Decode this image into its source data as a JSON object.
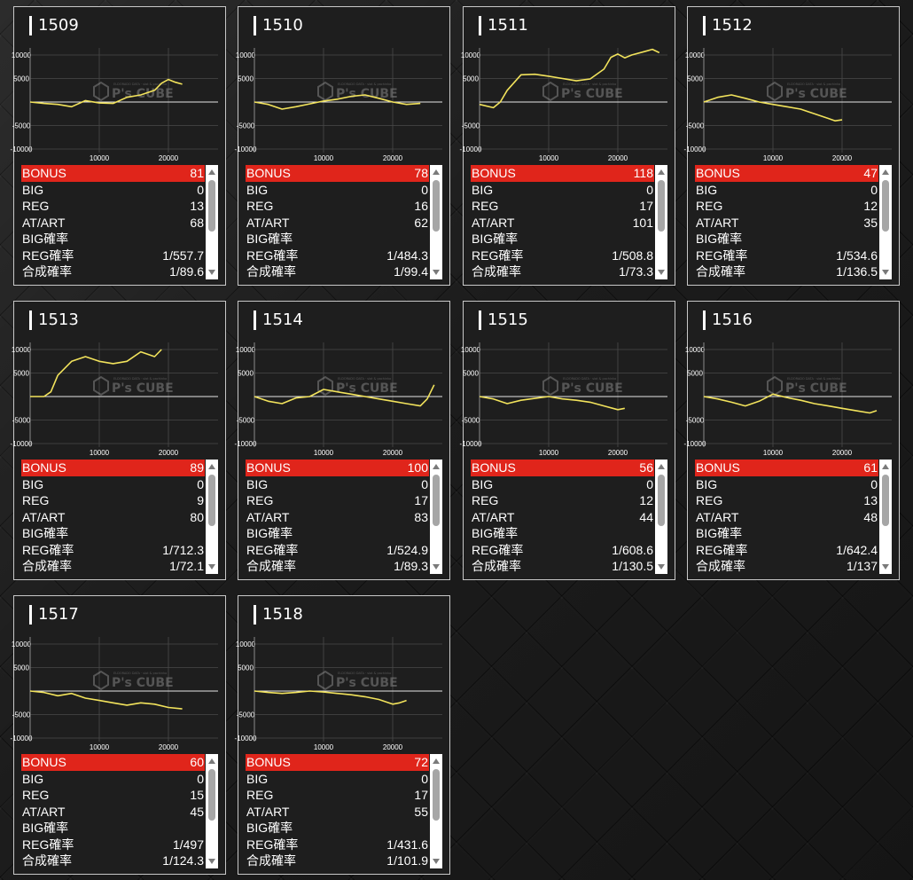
{
  "stat_labels": [
    "BONUS",
    "BIG",
    "REG",
    "AT/ART",
    "BIG確率",
    "REG確率",
    "合成確率"
  ],
  "watermark": {
    "brand": "P's CUBE",
    "subtitle": "ELDORADO DATA · slot & pachinko"
  },
  "chart_axes": {
    "y_ticks": [
      "10000",
      "5000",
      "-5000",
      "-10000"
    ],
    "x_ticks": [
      "10000",
      "20000"
    ],
    "ylim": [
      -12000,
      12000
    ],
    "xlim": [
      0,
      28000
    ],
    "line_color": "#f2e35c",
    "grid_color": "#4a4a4a"
  },
  "colors": {
    "bonus_highlight": "#e0251b",
    "card_bg": "#1e1e1e",
    "card_border": "#c8c8c8"
  },
  "machines": [
    {
      "id": "1509",
      "stats": [
        "81",
        "0",
        "13",
        "68",
        "",
        "1/557.7",
        "1/89.6"
      ],
      "chart_data": {
        "type": "line",
        "x": [
          0,
          2000,
          4000,
          6000,
          8000,
          10000,
          12000,
          14000,
          16000,
          18000,
          19000,
          20000,
          21000,
          22000
        ],
        "y": [
          0,
          -300,
          -500,
          -1000,
          300,
          -200,
          -300,
          1000,
          1500,
          2500,
          4000,
          4800,
          4200,
          3800
        ]
      }
    },
    {
      "id": "1510",
      "stats": [
        "78",
        "0",
        "16",
        "62",
        "",
        "1/484.3",
        "1/99.4"
      ],
      "chart_data": {
        "type": "line",
        "x": [
          0,
          2000,
          4000,
          6000,
          8000,
          10000,
          12000,
          14000,
          16000,
          18000,
          20000,
          22000,
          24000
        ],
        "y": [
          0,
          -500,
          -1500,
          -1000,
          -400,
          200,
          600,
          1200,
          1500,
          800,
          0,
          -500,
          -300
        ]
      }
    },
    {
      "id": "1511",
      "stats": [
        "118",
        "0",
        "17",
        "101",
        "",
        "1/508.8",
        "1/73.3"
      ],
      "chart_data": {
        "type": "line",
        "x": [
          0,
          2000,
          3000,
          4000,
          6000,
          8000,
          10000,
          12000,
          14000,
          16000,
          18000,
          19000,
          20000,
          21000,
          22000,
          24000,
          25000,
          26000
        ],
        "y": [
          -500,
          -1200,
          0,
          2500,
          5800,
          5900,
          5500,
          5000,
          4500,
          4900,
          7000,
          9500,
          10200,
          9400,
          10000,
          10800,
          11200,
          10500
        ]
      }
    },
    {
      "id": "1512",
      "stats": [
        "47",
        "0",
        "12",
        "35",
        "",
        "1/534.6",
        "1/136.5"
      ],
      "chart_data": {
        "type": "line",
        "x": [
          0,
          2000,
          4000,
          6000,
          8000,
          10000,
          12000,
          14000,
          16000,
          18000,
          19000,
          20000
        ],
        "y": [
          0,
          1000,
          1500,
          800,
          0,
          -500,
          -1000,
          -1500,
          -2500,
          -3500,
          -4000,
          -3800
        ]
      }
    },
    {
      "id": "1513",
      "stats": [
        "89",
        "0",
        "9",
        "80",
        "",
        "1/712.3",
        "1/72.1"
      ],
      "chart_data": {
        "type": "line",
        "x": [
          0,
          2000,
          3000,
          4000,
          6000,
          8000,
          10000,
          12000,
          14000,
          16000,
          18000,
          19000
        ],
        "y": [
          0,
          0,
          1000,
          4500,
          7500,
          8500,
          7500,
          7000,
          7500,
          9500,
          8500,
          10000
        ]
      }
    },
    {
      "id": "1514",
      "stats": [
        "100",
        "0",
        "17",
        "83",
        "",
        "1/524.9",
        "1/89.3"
      ],
      "chart_data": {
        "type": "line",
        "x": [
          0,
          2000,
          4000,
          6000,
          8000,
          10000,
          12000,
          14000,
          16000,
          18000,
          20000,
          22000,
          24000,
          25000,
          26000
        ],
        "y": [
          0,
          -1000,
          -1500,
          -300,
          0,
          1500,
          1000,
          500,
          0,
          -500,
          -1000,
          -1500,
          -2000,
          -500,
          2500
        ]
      }
    },
    {
      "id": "1515",
      "stats": [
        "56",
        "0",
        "12",
        "44",
        "",
        "1/608.6",
        "1/130.5"
      ],
      "chart_data": {
        "type": "line",
        "x": [
          0,
          2000,
          4000,
          6000,
          8000,
          10000,
          12000,
          14000,
          16000,
          18000,
          20000,
          21000
        ],
        "y": [
          0,
          -500,
          -1500,
          -800,
          -400,
          0,
          -500,
          -800,
          -1200,
          -2000,
          -2800,
          -2500
        ]
      }
    },
    {
      "id": "1516",
      "stats": [
        "61",
        "0",
        "13",
        "48",
        "",
        "1/642.4",
        "1/137"
      ],
      "chart_data": {
        "type": "line",
        "x": [
          0,
          2000,
          4000,
          6000,
          8000,
          10000,
          12000,
          14000,
          16000,
          18000,
          20000,
          22000,
          24000,
          25000
        ],
        "y": [
          0,
          -500,
          -1200,
          -2000,
          -1000,
          500,
          -200,
          -800,
          -1500,
          -2000,
          -2500,
          -3000,
          -3500,
          -3000
        ]
      }
    },
    {
      "id": "1517",
      "stats": [
        "60",
        "0",
        "15",
        "45",
        "",
        "1/497",
        "1/124.3"
      ],
      "chart_data": {
        "type": "line",
        "x": [
          0,
          2000,
          4000,
          6000,
          8000,
          10000,
          12000,
          14000,
          16000,
          18000,
          20000,
          22000
        ],
        "y": [
          0,
          -300,
          -1000,
          -500,
          -1500,
          -2000,
          -2500,
          -3000,
          -2500,
          -2800,
          -3500,
          -3800
        ]
      }
    },
    {
      "id": "1518",
      "stats": [
        "72",
        "0",
        "17",
        "55",
        "",
        "1/431.6",
        "1/101.9"
      ],
      "chart_data": {
        "type": "line",
        "x": [
          0,
          2000,
          4000,
          6000,
          8000,
          10000,
          12000,
          14000,
          16000,
          18000,
          20000,
          21000,
          22000
        ],
        "y": [
          0,
          -300,
          -500,
          -300,
          0,
          -200,
          -500,
          -800,
          -1200,
          -1800,
          -2800,
          -2500,
          -2000
        ]
      }
    }
  ]
}
